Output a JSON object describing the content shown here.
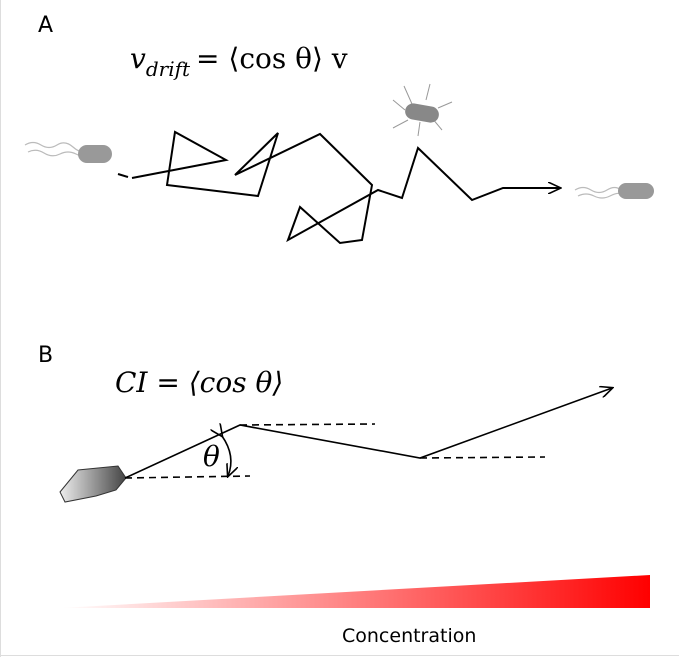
{
  "panel_a": {
    "label": "A",
    "equation": {
      "lhs": "v",
      "subscript": "drift",
      "rhs": "= ⟨cos θ⟩ v"
    }
  },
  "panel_b": {
    "label": "B",
    "equation": "CI = ⟨cos θ⟩",
    "angle_label": "θ"
  },
  "gradient": {
    "label": "Concentration"
  }
}
